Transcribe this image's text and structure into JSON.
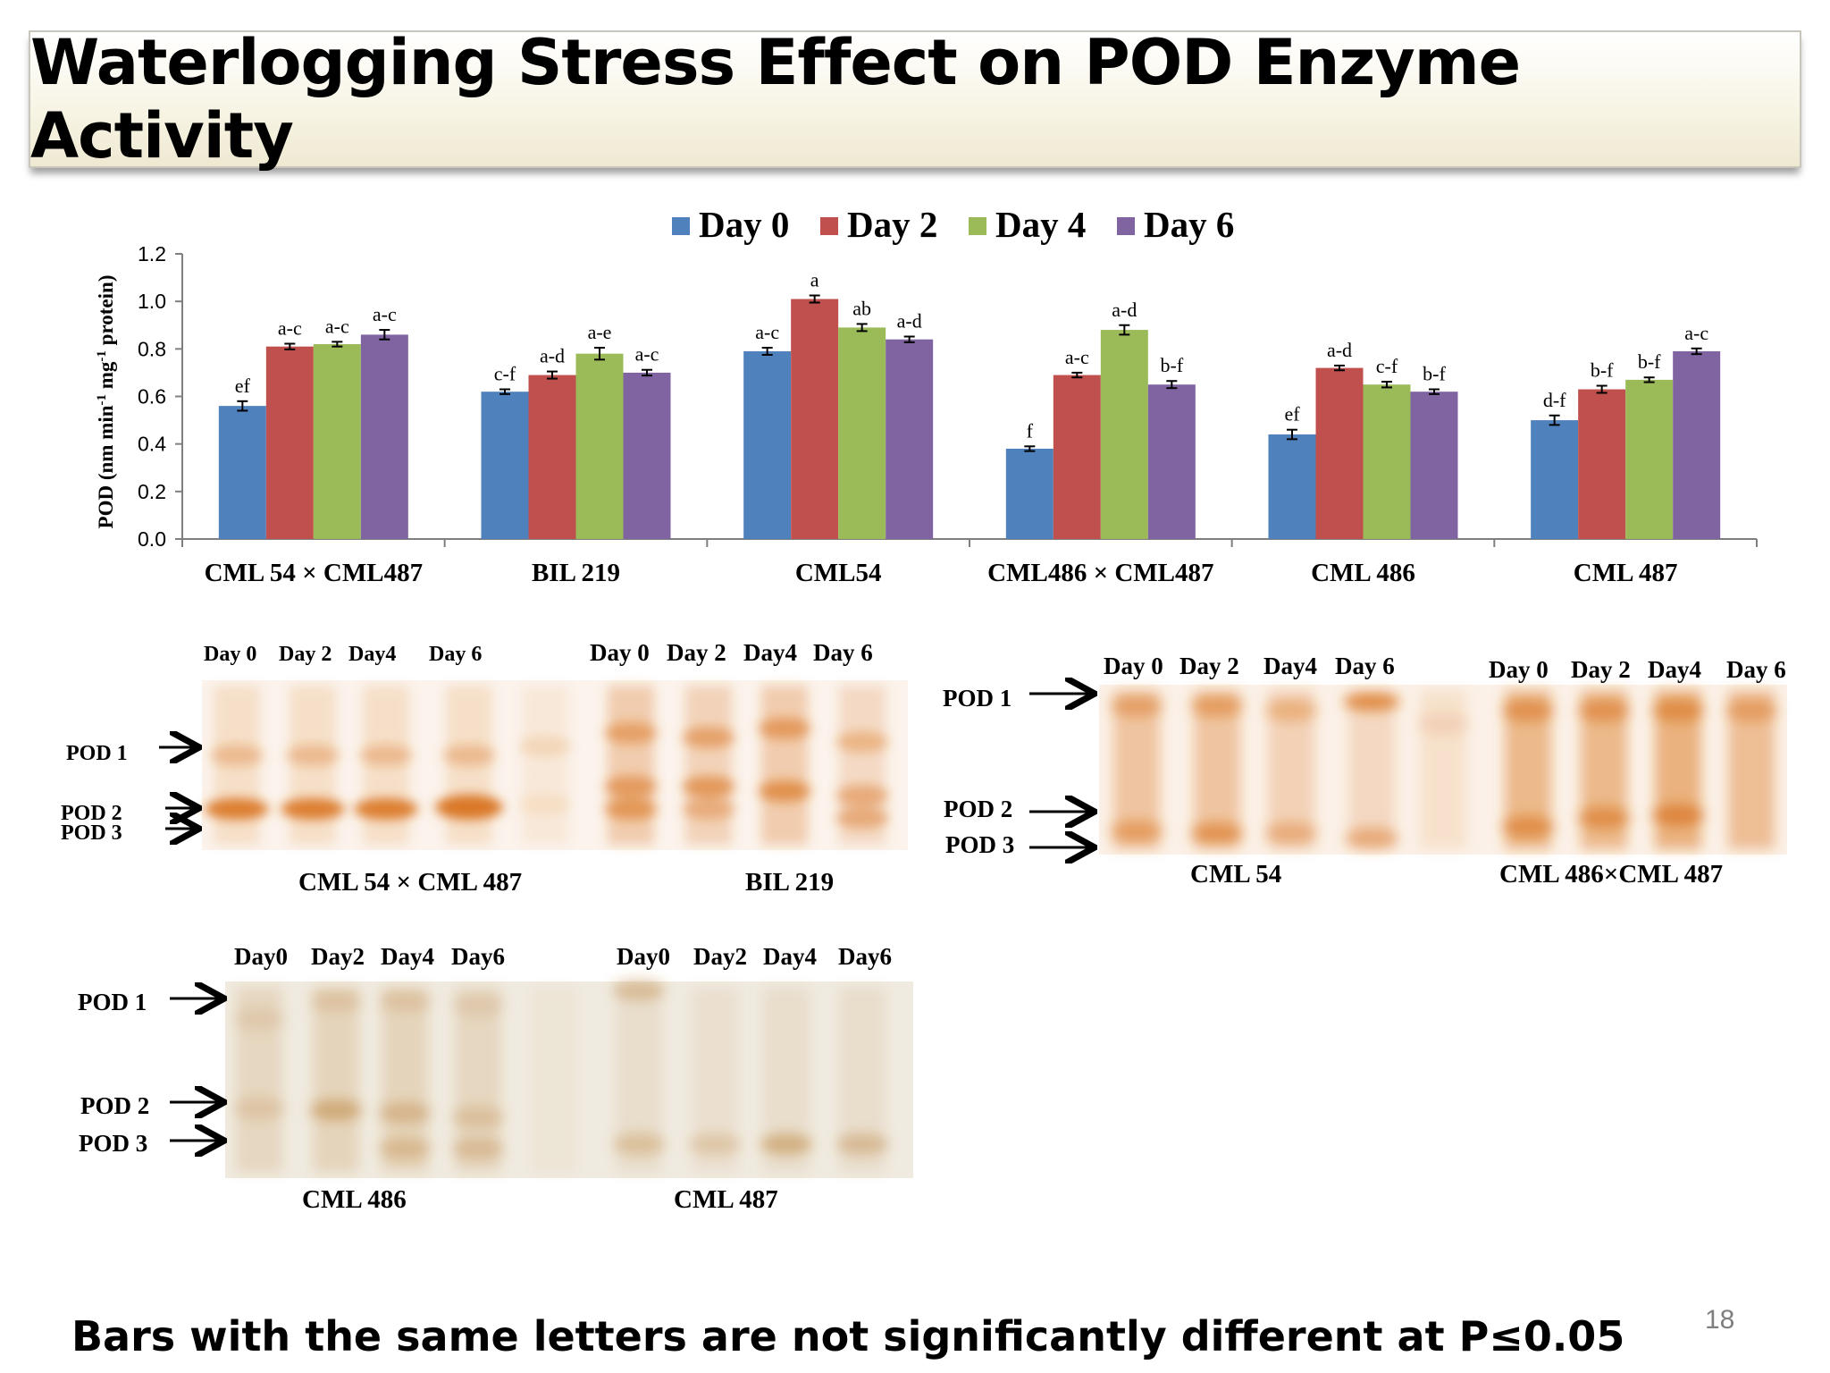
{
  "title": "Waterlogging Stress Effect on POD Enzyme Activity",
  "footer": "Bars with the same letters are not significantly different at P≤0.05",
  "page_number": "18",
  "colors": {
    "day0": "#4f81bd",
    "day2": "#c0504d",
    "day4": "#9bbb59",
    "day6": "#8064a2"
  },
  "chart_data": {
    "type": "bar",
    "ylabel_prefix": "POD (nm min",
    "ylabel_mid": " mg",
    "ylabel_suffix": " protein)",
    "ylabel_sup": "-1",
    "ylim": [
      0,
      1.2
    ],
    "yticks": [
      "0.0",
      "0.2",
      "0.4",
      "0.6",
      "0.8",
      "1.0",
      "1.2"
    ],
    "legend_position": "top",
    "grid": false,
    "categories": [
      "CML 54 × CML487",
      "BIL 219",
      "CML54",
      "CML486 × CML487",
      "CML 486",
      "CML 487"
    ],
    "series": [
      {
        "name": "Day 0",
        "values": [
          0.56,
          0.62,
          0.79,
          0.38,
          0.44,
          0.5
        ],
        "errors": [
          0.02,
          0.01,
          0.015,
          0.01,
          0.02,
          0.02
        ],
        "letters": [
          "ef",
          "c-f",
          "a-c",
          "f",
          "ef",
          "d-f"
        ]
      },
      {
        "name": "Day 2",
        "values": [
          0.81,
          0.69,
          1.01,
          0.69,
          0.72,
          0.63
        ],
        "errors": [
          0.012,
          0.015,
          0.015,
          0.01,
          0.01,
          0.015
        ],
        "letters": [
          "a-c",
          "a-d",
          "a",
          "a-c",
          "a-d",
          "b-f"
        ]
      },
      {
        "name": "Day 4",
        "values": [
          0.82,
          0.78,
          0.89,
          0.88,
          0.65,
          0.67
        ],
        "errors": [
          0.01,
          0.025,
          0.015,
          0.02,
          0.012,
          0.01
        ],
        "letters": [
          "a-c",
          "a-e",
          "ab",
          "a-d",
          "c-f",
          "b-f"
        ]
      },
      {
        "name": "Day 6",
        "values": [
          0.86,
          0.7,
          0.84,
          0.65,
          0.62,
          0.79
        ],
        "errors": [
          0.02,
          0.012,
          0.012,
          0.015,
          0.01,
          0.012
        ],
        "letters": [
          "a-c",
          "a-c",
          "a-d",
          "b-f",
          "b-f",
          "a-c"
        ]
      }
    ]
  },
  "gels": [
    {
      "days_a": [
        "Day 0",
        "Day 2",
        "Day4",
        "Day 6"
      ],
      "days_b": [
        "Day 0",
        "Day 2",
        "Day4",
        "Day 6"
      ],
      "bands": [
        "POD 1",
        "POD 2",
        "POD 3"
      ],
      "captions": [
        "CML 54 × CML 487",
        "BIL 219"
      ]
    },
    {
      "days_a": [
        "Day 0",
        "Day 2",
        "Day4",
        "Day 6"
      ],
      "days_b": [
        "Day 0",
        "Day 2",
        "Day4",
        "Day 6"
      ],
      "bands": [
        "POD 1",
        "POD 2",
        "POD 3"
      ],
      "captions": [
        "CML 54",
        "CML 486×CML 487"
      ]
    },
    {
      "days_a": [
        "Day0",
        "Day2",
        "Day4",
        "Day6"
      ],
      "days_b": [
        "Day0",
        "Day2",
        "Day4",
        "Day6"
      ],
      "bands": [
        "POD 1",
        "POD 2",
        "POD 3"
      ],
      "captions": [
        "CML 486",
        "CML 487"
      ]
    }
  ]
}
